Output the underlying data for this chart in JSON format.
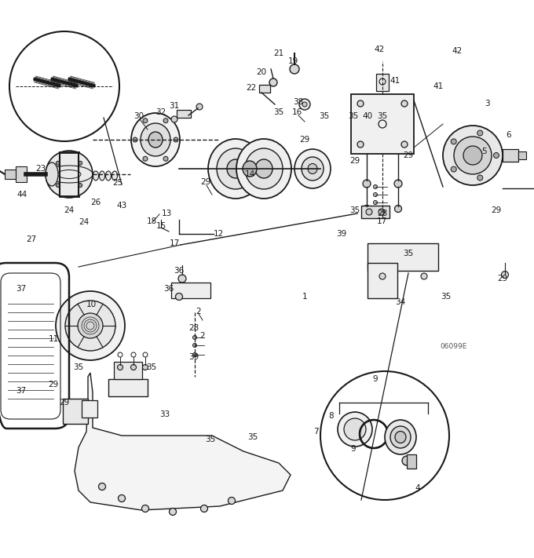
{
  "bg_color": "#ffffff",
  "line_color": "#1a1a1a",
  "text_color": "#1a1a1a",
  "fig_width": 6.8,
  "fig_height": 7.11,
  "dpi": 100,
  "diagram_code": "06099E",
  "labels": [
    [
      "1",
      388,
      378
    ],
    [
      "2",
      253,
      397
    ],
    [
      "2",
      258,
      428
    ],
    [
      "3",
      620,
      132
    ],
    [
      "4",
      532,
      622
    ],
    [
      "5",
      617,
      193
    ],
    [
      "6",
      648,
      172
    ],
    [
      "7",
      402,
      550
    ],
    [
      "8",
      422,
      530
    ],
    [
      "9",
      478,
      483
    ],
    [
      "9",
      450,
      572
    ],
    [
      "10",
      116,
      388
    ],
    [
      "11",
      68,
      432
    ],
    [
      "12",
      278,
      298
    ],
    [
      "13",
      212,
      272
    ],
    [
      "14",
      318,
      222
    ],
    [
      "15",
      205,
      288
    ],
    [
      "16",
      378,
      143
    ],
    [
      "17",
      222,
      310
    ],
    [
      "17",
      486,
      282
    ],
    [
      "18",
      193,
      282
    ],
    [
      "19",
      373,
      78
    ],
    [
      "20",
      333,
      92
    ],
    [
      "21",
      355,
      68
    ],
    [
      "22",
      320,
      112
    ],
    [
      "23",
      52,
      215
    ],
    [
      "24",
      88,
      268
    ],
    [
      "24",
      107,
      283
    ],
    [
      "25",
      150,
      233
    ],
    [
      "26",
      122,
      258
    ],
    [
      "27",
      40,
      305
    ],
    [
      "28",
      247,
      418
    ],
    [
      "28",
      487,
      272
    ],
    [
      "29",
      262,
      232
    ],
    [
      "29",
      388,
      178
    ],
    [
      "29",
      452,
      205
    ],
    [
      "29",
      520,
      198
    ],
    [
      "29",
      632,
      268
    ],
    [
      "29",
      640,
      355
    ],
    [
      "29",
      68,
      490
    ],
    [
      "29",
      82,
      513
    ],
    [
      "30",
      177,
      148
    ],
    [
      "31",
      222,
      135
    ],
    [
      "32",
      205,
      143
    ],
    [
      "33",
      210,
      528
    ],
    [
      "34",
      510,
      385
    ],
    [
      "35",
      355,
      143
    ],
    [
      "35",
      413,
      148
    ],
    [
      "35",
      450,
      148
    ],
    [
      "35",
      487,
      148
    ],
    [
      "35",
      452,
      268
    ],
    [
      "35",
      520,
      323
    ],
    [
      "35",
      568,
      378
    ],
    [
      "35",
      100,
      468
    ],
    [
      "35",
      193,
      468
    ],
    [
      "35",
      268,
      560
    ],
    [
      "35",
      322,
      557
    ],
    [
      "36",
      215,
      368
    ],
    [
      "36",
      228,
      345
    ],
    [
      "37",
      27,
      368
    ],
    [
      "37",
      27,
      498
    ],
    [
      "38",
      380,
      130
    ],
    [
      "39",
      435,
      298
    ],
    [
      "39",
      247,
      455
    ],
    [
      "40",
      468,
      148
    ],
    [
      "41",
      503,
      103
    ],
    [
      "41",
      558,
      110
    ],
    [
      "42",
      483,
      63
    ],
    [
      "42",
      582,
      65
    ],
    [
      "43",
      155,
      262
    ],
    [
      "44",
      28,
      248
    ]
  ]
}
